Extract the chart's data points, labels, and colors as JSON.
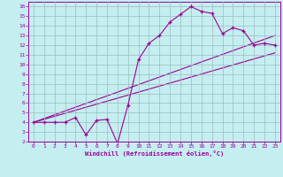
{
  "xlabel": "Windchill (Refroidissement éolien,°C)",
  "bg_color": "#c5eef0",
  "line_color": "#990099",
  "grid_color": "#9bbcbe",
  "xlim": [
    -0.5,
    23.5
  ],
  "ylim": [
    2,
    16.5
  ],
  "x_ticks": [
    0,
    1,
    2,
    3,
    4,
    5,
    6,
    7,
    8,
    9,
    10,
    11,
    12,
    13,
    14,
    15,
    16,
    17,
    18,
    19,
    20,
    21,
    22,
    23
  ],
  "y_ticks": [
    2,
    3,
    4,
    5,
    6,
    7,
    8,
    9,
    10,
    11,
    12,
    13,
    14,
    15,
    16
  ],
  "jagged_x": [
    0,
    1,
    2,
    3,
    4,
    5,
    6,
    7,
    8,
    9,
    10,
    11,
    12,
    13,
    14,
    15,
    16,
    17,
    18,
    19,
    20,
    21,
    22,
    23
  ],
  "jagged_y": [
    4.0,
    4.0,
    4.0,
    4.0,
    4.5,
    2.7,
    4.2,
    4.3,
    1.8,
    5.8,
    10.5,
    12.2,
    13.0,
    14.4,
    15.2,
    16.0,
    15.5,
    15.3,
    13.2,
    13.8,
    13.5,
    12.0,
    12.2,
    12.0
  ],
  "line1_x": [
    0,
    23
  ],
  "line1_y": [
    4.0,
    11.2
  ],
  "line2_x": [
    0,
    23
  ],
  "line2_y": [
    4.0,
    13.0
  ]
}
